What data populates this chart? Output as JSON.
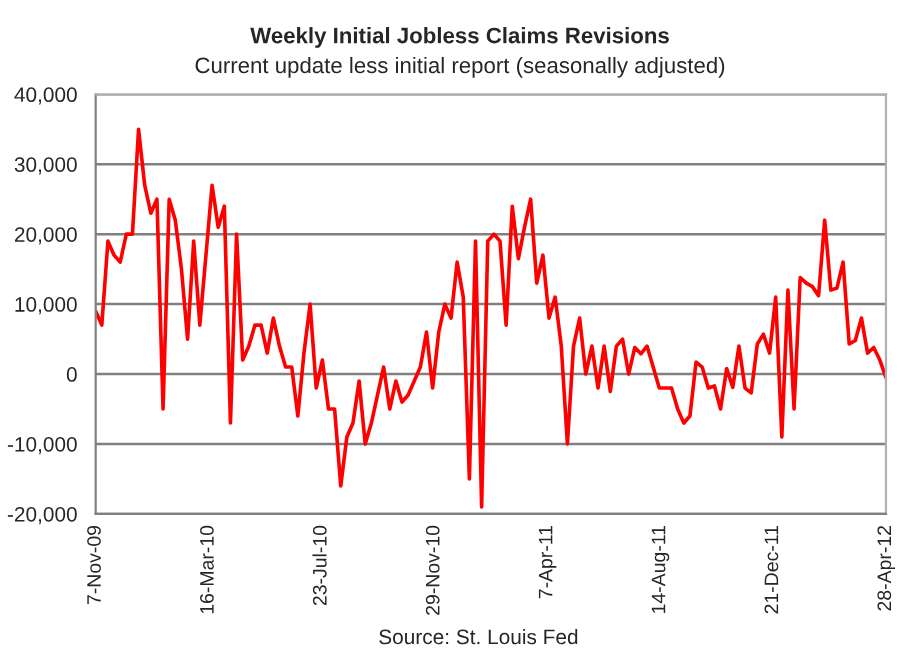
{
  "chart_data": {
    "type": "line",
    "title": "Weekly Initial Jobless Claims Revisions",
    "subtitle": "Current update less initial report (seasonally adjusted)",
    "annotations": [
      "Source: St. Louis Fed"
    ],
    "x": [
      "2009-11-07",
      "2009-11-14",
      "2009-11-21",
      "2009-11-28",
      "2009-12-05",
      "2009-12-12",
      "2009-12-19",
      "2009-12-26",
      "2010-01-02",
      "2010-01-09",
      "2010-01-16",
      "2010-01-23",
      "2010-01-30",
      "2010-02-06",
      "2010-02-13",
      "2010-02-20",
      "2010-02-27",
      "2010-03-06",
      "2010-03-13",
      "2010-03-20",
      "2010-03-27",
      "2010-04-03",
      "2010-04-10",
      "2010-04-17",
      "2010-04-24",
      "2010-05-01",
      "2010-05-08",
      "2010-05-15",
      "2010-05-22",
      "2010-05-29",
      "2010-06-05",
      "2010-06-12",
      "2010-06-19",
      "2010-06-26",
      "2010-07-03",
      "2010-07-10",
      "2010-07-17",
      "2010-07-24",
      "2010-07-31",
      "2010-08-07",
      "2010-08-14",
      "2010-08-21",
      "2010-08-28",
      "2010-09-04",
      "2010-09-11",
      "2010-09-18",
      "2010-09-25",
      "2010-10-02",
      "2010-10-09",
      "2010-10-16",
      "2010-10-23",
      "2010-10-30",
      "2010-11-06",
      "2010-11-13",
      "2010-11-20",
      "2010-11-27",
      "2010-12-04",
      "2010-12-11",
      "2010-12-18",
      "2010-12-25",
      "2011-01-01",
      "2011-01-08",
      "2011-01-15",
      "2011-01-22",
      "2011-01-29",
      "2011-02-05",
      "2011-02-12",
      "2011-02-19",
      "2011-02-26",
      "2011-03-05",
      "2011-03-12",
      "2011-03-19",
      "2011-03-26",
      "2011-04-02",
      "2011-04-09",
      "2011-04-16",
      "2011-04-23",
      "2011-04-30",
      "2011-05-07",
      "2011-05-14",
      "2011-05-21",
      "2011-05-28",
      "2011-06-04",
      "2011-06-11",
      "2011-06-18",
      "2011-06-25",
      "2011-07-02",
      "2011-07-09",
      "2011-07-16",
      "2011-07-23",
      "2011-07-30",
      "2011-08-06",
      "2011-08-13",
      "2011-08-20",
      "2011-08-27",
      "2011-09-03",
      "2011-09-10",
      "2011-09-17",
      "2011-09-24",
      "2011-10-01",
      "2011-10-08",
      "2011-10-15",
      "2011-10-22",
      "2011-10-29",
      "2011-11-05",
      "2011-11-12",
      "2011-11-19",
      "2011-11-26",
      "2011-12-03",
      "2011-12-10",
      "2011-12-17",
      "2011-12-24",
      "2011-12-31",
      "2012-01-07",
      "2012-01-14",
      "2012-01-21",
      "2012-01-28",
      "2012-02-04",
      "2012-02-11",
      "2012-02-18",
      "2012-02-25",
      "2012-03-03",
      "2012-03-10",
      "2012-03-17",
      "2012-03-24",
      "2012-03-31",
      "2012-04-07",
      "2012-04-14",
      "2012-04-21",
      "2012-04-28"
    ],
    "series": [
      {
        "color": "#ff0000",
        "values": [
          9000,
          7000,
          19000,
          17000,
          16000,
          20000,
          20000,
          35000,
          27000,
          23000,
          25000,
          -5000,
          25000,
          22000,
          15000,
          5000,
          19000,
          7000,
          17000,
          27000,
          21000,
          24000,
          -7000,
          20000,
          2000,
          4000,
          7000,
          7000,
          3000,
          8000,
          4000,
          1000,
          1000,
          -6000,
          3000,
          10000,
          -2000,
          2000,
          -5000,
          -5000,
          -16000,
          -9000,
          -7000,
          -1000,
          -10000,
          -7000,
          -3000,
          1000,
          -5000,
          -1000,
          -4000,
          -3000,
          -1000,
          1000,
          6000,
          -2000,
          6000,
          10000,
          8000,
          16000,
          11000,
          -15000,
          19000,
          -19000,
          19000,
          20000,
          19000,
          7000,
          24000,
          16500,
          21000,
          25000,
          13000,
          17000,
          8000,
          11000,
          4000,
          -10000,
          4000,
          8000,
          0,
          4000,
          -2000,
          4000,
          -2500,
          4000,
          5000,
          0,
          3800,
          2900,
          4000,
          1000,
          -2000,
          -2000,
          -2000,
          -5000,
          -7000,
          -6000,
          1700,
          1000,
          -2000,
          -1700,
          -5000,
          800,
          -1900,
          4000,
          -2000,
          -2700,
          4300,
          5700,
          3000,
          11000,
          -9000,
          12000,
          -5000,
          13800,
          13000,
          12500,
          11200,
          22000,
          12000,
          12300,
          16000,
          4300,
          4800,
          8000,
          3000,
          3800,
          2000,
          -500
        ]
      }
    ],
    "xlim": [
      "2009-11-07",
      "2012-04-28"
    ],
    "xticks": [
      {
        "value": "2009-11-07",
        "label": "7-Nov-09"
      },
      {
        "value": "2010-03-16",
        "label": "16-Mar-10"
      },
      {
        "value": "2010-07-23",
        "label": "23-Jul-10"
      },
      {
        "value": "2010-11-29",
        "label": "29-Nov-10"
      },
      {
        "value": "2011-04-07",
        "label": "7-Apr-11"
      },
      {
        "value": "2011-08-14",
        "label": "14-Aug-11"
      },
      {
        "value": "2011-12-21",
        "label": "21-Dec-11"
      },
      {
        "value": "2012-04-28",
        "label": "28-Apr-12"
      }
    ],
    "ylim": [
      -20000,
      40000
    ],
    "yticks": [
      {
        "value": -20000,
        "label": "-20,000"
      },
      {
        "value": -10000,
        "label": "-10,000"
      },
      {
        "value": 0,
        "label": "0"
      },
      {
        "value": 10000,
        "label": "10,000"
      },
      {
        "value": 20000,
        "label": "20,000"
      },
      {
        "value": 30000,
        "label": "30,000"
      },
      {
        "value": 40000,
        "label": "40,000"
      }
    ],
    "grid": "y",
    "marker": "none",
    "line_style": "solid"
  }
}
